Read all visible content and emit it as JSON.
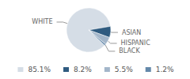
{
  "chart_data": {
    "type": "pie",
    "categories": [
      "WHITE",
      "ASIAN",
      "HISPANIC",
      "BLACK"
    ],
    "values": [
      85.1,
      8.2,
      5.5,
      1.2
    ],
    "value_labels": [
      "85.1%",
      "8.2%",
      "5.5%",
      "1.2%"
    ],
    "colors": [
      "#d5dde6",
      "#2f5b80",
      "#a3b6ca",
      "#6489aa"
    ],
    "legend": "bottom"
  }
}
